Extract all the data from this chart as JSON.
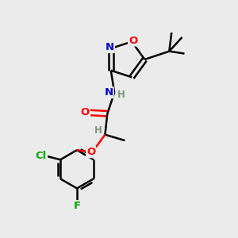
{
  "bg_color": "#ebebeb",
  "bond_color": "#000000",
  "atom_colors": {
    "O": "#ff0000",
    "N": "#0000cd",
    "Cl": "#00aa00",
    "F": "#00aa00",
    "H_label": "#7a9a7a",
    "C": "#000000"
  },
  "bond_width": 1.8,
  "figsize": [
    3.0,
    3.0
  ],
  "dpi": 100
}
